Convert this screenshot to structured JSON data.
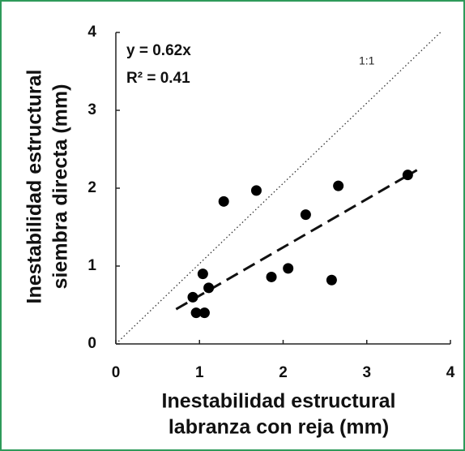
{
  "chart_data": {
    "type": "scatter",
    "x_label_lines": [
      "Inestabilidad estructural",
      "labranza con reja (mm)"
    ],
    "y_label_lines": [
      "Inestabilidad estructural",
      "siembra directa (mm)"
    ],
    "series": [
      {
        "color": "#000000",
        "x": [
          1.29,
          1.68,
          2.66,
          3.49,
          2.27,
          1.04,
          2.06,
          1.86,
          2.58,
          1.11,
          0.92,
          0.96,
          1.06
        ],
        "values": [
          1.83,
          1.97,
          2.03,
          2.17,
          1.66,
          0.9,
          0.97,
          0.86,
          0.82,
          0.72,
          0.6,
          0.4,
          0.4
        ]
      }
    ],
    "trend": {
      "label": "y = 0.62x",
      "slope": 0.62,
      "r2_label": "R² = 0.41"
    },
    "identity_label": "1:1",
    "xlim": [
      0,
      4
    ],
    "ylim": [
      0,
      4
    ],
    "xticks": [
      0,
      1,
      2,
      3,
      4
    ],
    "yticks": [
      0,
      1,
      2,
      3,
      4
    ]
  }
}
